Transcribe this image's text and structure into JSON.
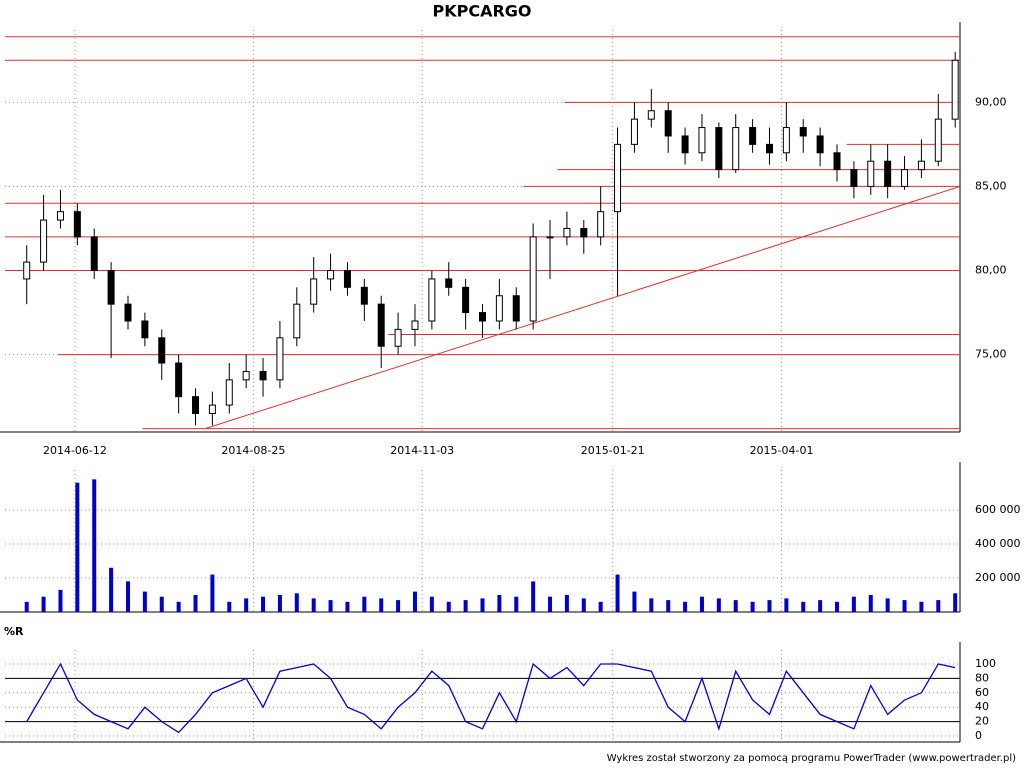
{
  "chart_data": [
    {
      "type": "candlestick",
      "title": "PKPCARGO",
      "color_up": "#ffffff",
      "color_down": "#000000",
      "x": [
        "2014-05-23",
        "2014-05-30",
        "2014-06-06",
        "2014-06-13",
        "2014-06-20",
        "2014-06-27",
        "2014-07-04",
        "2014-07-11",
        "2014-07-18",
        "2014-07-25",
        "2014-08-01",
        "2014-08-08",
        "2014-08-15",
        "2014-08-22",
        "2014-08-29",
        "2014-09-05",
        "2014-09-12",
        "2014-09-19",
        "2014-09-26",
        "2014-10-03",
        "2014-10-10",
        "2014-10-17",
        "2014-10-24",
        "2014-10-31",
        "2014-11-07",
        "2014-11-14",
        "2014-11-21",
        "2014-11-28",
        "2014-12-05",
        "2014-12-12",
        "2014-12-19",
        "2014-12-26",
        "2015-01-02",
        "2015-01-09",
        "2015-01-16",
        "2015-01-23",
        "2015-01-30",
        "2015-02-06",
        "2015-02-13",
        "2015-02-20",
        "2015-02-27",
        "2015-03-06",
        "2015-03-13",
        "2015-03-20",
        "2015-03-27",
        "2015-04-03",
        "2015-04-10",
        "2015-04-17",
        "2015-04-24",
        "2015-05-01",
        "2015-05-08",
        "2015-05-15",
        "2015-05-22",
        "2015-05-29",
        "2015-06-05",
        "2015-06-12"
      ],
      "open": [
        79.5,
        80.5,
        83,
        83.5,
        82,
        80,
        78,
        77,
        76,
        74.5,
        72.5,
        71.5,
        72,
        73.5,
        74,
        73.5,
        76,
        78,
        79.5,
        80,
        79,
        78,
        75.5,
        76.5,
        77,
        79.5,
        79,
        77.5,
        77,
        78.5,
        77,
        82,
        82,
        82.5,
        82,
        83.5,
        87.5,
        89,
        89.5,
        88,
        87,
        88.5,
        86,
        88.5,
        87.5,
        87,
        88.5,
        88,
        87,
        86,
        85,
        86.5,
        85,
        86,
        86.5,
        89
      ],
      "high": [
        81.5,
        84.5,
        84.8,
        84,
        82.5,
        80.5,
        78.5,
        77.5,
        76.5,
        75,
        73,
        72.8,
        74.5,
        75,
        74.8,
        77,
        79,
        80.8,
        81,
        80.5,
        79.5,
        78.5,
        77.5,
        78,
        80,
        80.5,
        79.5,
        78,
        79.5,
        79,
        82.8,
        83,
        83.5,
        83,
        85,
        88.5,
        90,
        90.8,
        90,
        88.5,
        89.3,
        88.8,
        89.3,
        89,
        88.5,
        90,
        89,
        88.5,
        87.5,
        86.5,
        87.5,
        87.5,
        86.8,
        87.8,
        90.5,
        93
      ],
      "low": [
        78,
        80,
        82.5,
        81.5,
        79.5,
        74.8,
        76.5,
        75.5,
        73.5,
        71.5,
        70.8,
        70.8,
        71.5,
        73,
        72.5,
        73,
        75.5,
        77.5,
        78.8,
        78.5,
        77,
        74.2,
        75,
        75.5,
        76.5,
        78.5,
        76.5,
        76,
        76.5,
        76.5,
        76.5,
        79.5,
        81.5,
        81,
        81.5,
        78.5,
        87,
        88.5,
        87,
        86.3,
        86.5,
        85.5,
        85.8,
        87,
        86.3,
        86.5,
        87,
        86.2,
        85.3,
        84.3,
        84.5,
        84.3,
        84.8,
        85.5,
        86.2,
        88.5
      ],
      "close": [
        80.5,
        83,
        83.5,
        82,
        80,
        78,
        77,
        76,
        74.5,
        72.5,
        71.5,
        72,
        73.5,
        74,
        73.5,
        76,
        78,
        79.5,
        80,
        79,
        78,
        75.5,
        76.5,
        77,
        79.5,
        79,
        77.5,
        77,
        78.5,
        77,
        82,
        82,
        82.5,
        82,
        83.5,
        87.5,
        89,
        89.5,
        88,
        87,
        88.5,
        86,
        88.5,
        87.5,
        87,
        88.5,
        88,
        87,
        86,
        85,
        86.5,
        85,
        86,
        86.5,
        89,
        92.5
      ],
      "xlim": [
        "2014-05-14",
        "2015-06-14"
      ],
      "xticks": [
        "2014-06-12",
        "2014-08-25",
        "2014-11-03",
        "2015-01-21",
        "2015-04-01"
      ],
      "ylim": [
        70.4,
        94.3
      ],
      "yticks": [
        {
          "value": 75,
          "label": "75,00"
        },
        {
          "value": 80,
          "label": "80,00"
        },
        {
          "value": 85,
          "label": "85,00"
        },
        {
          "value": 90,
          "label": "90,00"
        }
      ],
      "grid": true,
      "level_color": "#e03030",
      "levels": [
        {
          "value": 93.9,
          "from": "2014-05-14"
        },
        {
          "value": 92.5,
          "from": "2014-05-14"
        },
        {
          "value": 90,
          "from": "2015-01-01"
        },
        {
          "value": 87.5,
          "from": "2015-04-28"
        },
        {
          "value": 86,
          "from": "2014-12-29"
        },
        {
          "value": 85,
          "from": "2014-12-15"
        },
        {
          "value": 84,
          "from": "2014-05-14"
        },
        {
          "value": 82,
          "from": "2014-05-14"
        },
        {
          "value": 80,
          "from": "2014-05-14"
        },
        {
          "value": 76.2,
          "from": "2014-10-20"
        },
        {
          "value": 75,
          "from": "2014-06-05"
        },
        {
          "value": 70.6,
          "from": "2014-07-10"
        }
      ],
      "trendline": {
        "x": [
          "2014-08-05",
          "2015-06-14"
        ],
        "y": [
          70.6,
          85
        ]
      }
    },
    {
      "type": "bar",
      "color": "#0000cc",
      "x": [
        "2014-05-23",
        "2014-05-30",
        "2014-06-06",
        "2014-06-13",
        "2014-06-20",
        "2014-06-27",
        "2014-07-04",
        "2014-07-11",
        "2014-07-18",
        "2014-07-25",
        "2014-08-01",
        "2014-08-08",
        "2014-08-15",
        "2014-08-22",
        "2014-08-29",
        "2014-09-05",
        "2014-09-12",
        "2014-09-19",
        "2014-09-26",
        "2014-10-03",
        "2014-10-10",
        "2014-10-17",
        "2014-10-24",
        "2014-10-31",
        "2014-11-07",
        "2014-11-14",
        "2014-11-21",
        "2014-11-28",
        "2014-12-05",
        "2014-12-12",
        "2014-12-19",
        "2014-12-26",
        "2015-01-02",
        "2015-01-09",
        "2015-01-16",
        "2015-01-23",
        "2015-01-30",
        "2015-02-06",
        "2015-02-13",
        "2015-02-20",
        "2015-02-27",
        "2015-03-06",
        "2015-03-13",
        "2015-03-20",
        "2015-03-27",
        "2015-04-03",
        "2015-04-10",
        "2015-04-17",
        "2015-04-24",
        "2015-05-01",
        "2015-05-08",
        "2015-05-15",
        "2015-05-22",
        "2015-05-29",
        "2015-06-05",
        "2015-06-12"
      ],
      "values": [
        60000,
        90000,
        130000,
        760000,
        780000,
        260000,
        180000,
        120000,
        90000,
        60000,
        100000,
        220000,
        60000,
        80000,
        90000,
        100000,
        110000,
        80000,
        70000,
        60000,
        90000,
        80000,
        70000,
        120000,
        90000,
        60000,
        70000,
        80000,
        100000,
        90000,
        180000,
        90000,
        100000,
        80000,
        60000,
        220000,
        120000,
        80000,
        70000,
        60000,
        90000,
        80000,
        70000,
        60000,
        70000,
        80000,
        60000,
        70000,
        60000,
        90000,
        100000,
        80000,
        70000,
        60000,
        70000,
        110000
      ],
      "xlim": [
        "2014-05-14",
        "2015-06-14"
      ],
      "xticks": [
        "2014-06-12",
        "2014-08-25",
        "2014-11-03",
        "2015-01-21",
        "2015-04-01"
      ],
      "ylim": [
        0,
        835000
      ],
      "yticks": [
        {
          "value": 200000,
          "label": "200 000"
        },
        {
          "value": 400000,
          "label": "400 000"
        },
        {
          "value": 600000,
          "label": "600 000"
        }
      ],
      "grid": true
    },
    {
      "type": "line",
      "title": "%R",
      "x": [
        "2014-05-23",
        "2014-05-30",
        "2014-06-06",
        "2014-06-13",
        "2014-06-20",
        "2014-06-27",
        "2014-07-04",
        "2014-07-11",
        "2014-07-18",
        "2014-07-25",
        "2014-08-01",
        "2014-08-08",
        "2014-08-15",
        "2014-08-22",
        "2014-08-29",
        "2014-09-05",
        "2014-09-12",
        "2014-09-19",
        "2014-09-26",
        "2014-10-03",
        "2014-10-10",
        "2014-10-17",
        "2014-10-24",
        "2014-10-31",
        "2014-11-07",
        "2014-11-14",
        "2014-11-21",
        "2014-11-28",
        "2014-12-05",
        "2014-12-12",
        "2014-12-19",
        "2014-12-26",
        "2015-01-02",
        "2015-01-09",
        "2015-01-16",
        "2015-01-23",
        "2015-01-30",
        "2015-02-06",
        "2015-02-13",
        "2015-02-20",
        "2015-02-27",
        "2015-03-06",
        "2015-03-13",
        "2015-03-20",
        "2015-03-27",
        "2015-04-03",
        "2015-04-10",
        "2015-04-17",
        "2015-04-24",
        "2015-05-01",
        "2015-05-08",
        "2015-05-15",
        "2015-05-22",
        "2015-05-29",
        "2015-06-05",
        "2015-06-12"
      ],
      "series": [
        {
          "color": "#0000dd",
          "values": [
            20,
            60,
            100,
            50,
            30,
            20,
            10,
            40,
            20,
            5,
            30,
            60,
            70,
            80,
            40,
            90,
            95,
            100,
            80,
            40,
            30,
            10,
            40,
            60,
            90,
            70,
            20,
            10,
            60,
            20,
            100,
            80,
            95,
            70,
            100,
            100,
            95,
            90,
            40,
            20,
            80,
            10,
            90,
            50,
            30,
            90,
            60,
            30,
            20,
            10,
            70,
            30,
            50,
            60,
            100,
            95
          ]
        }
      ],
      "xlim": [
        "2014-05-14",
        "2015-06-14"
      ],
      "xticks": [
        "2014-06-12",
        "2014-08-25",
        "2014-11-03",
        "2015-01-21",
        "2015-04-01"
      ],
      "ylim": [
        -8.3,
        119.4
      ],
      "yticks": [
        0,
        20,
        40,
        60,
        80,
        100
      ],
      "reference_lines": [
        20,
        80
      ],
      "grid": true
    }
  ],
  "footer": "Wykres został stworzony za pomocą programu PowerTrader (www.powertrader.pl)"
}
